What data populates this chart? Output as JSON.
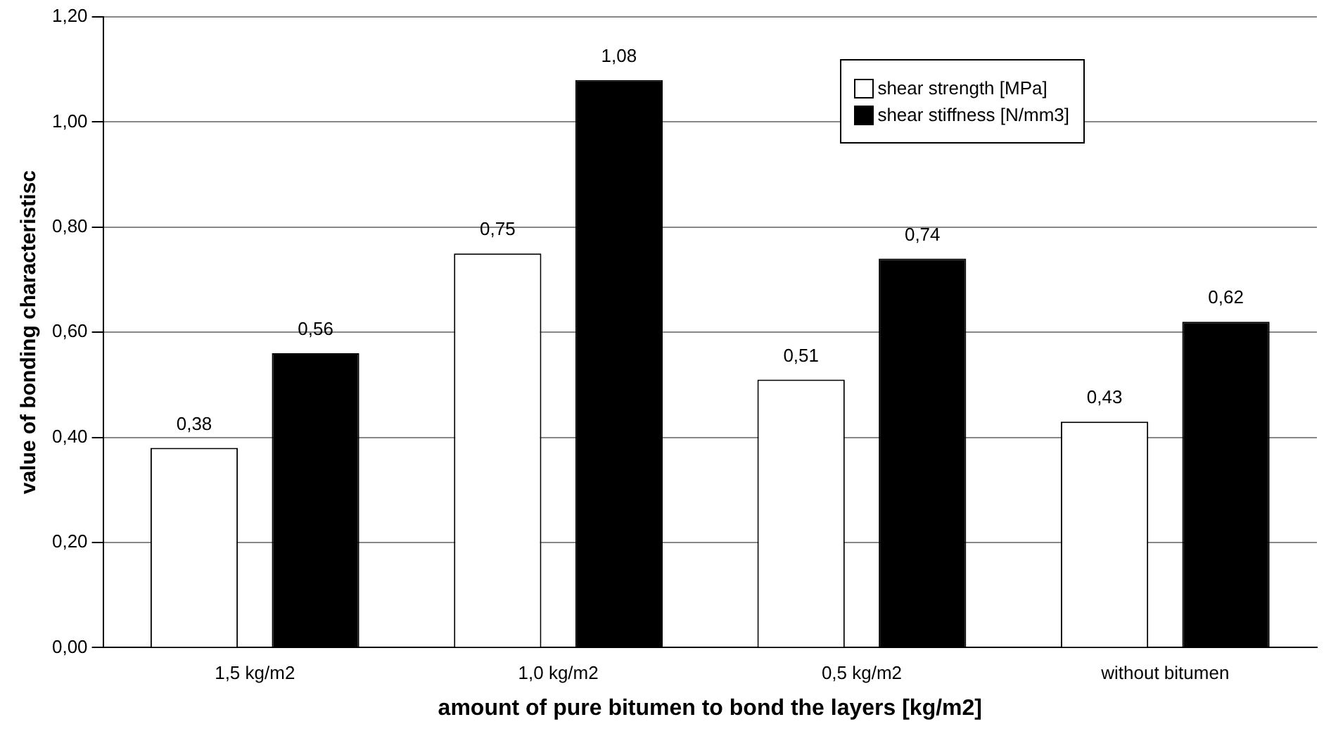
{
  "chart_data": {
    "type": "bar",
    "xlabel": "amount of pure bitumen to bond the layers [kg/m2]",
    "ylabel": "value of bonding characteristisc",
    "categories": [
      "1,5 kg/m2",
      "1,0 kg/m2",
      "0,5 kg/m2",
      "without bitumen"
    ],
    "series": [
      {
        "name": "shear strength [MPa]",
        "color": "#ffffff",
        "values": [
          0.38,
          0.75,
          0.51,
          0.43
        ],
        "value_labels": [
          "0,38",
          "0,75",
          "0,51",
          "0,43"
        ]
      },
      {
        "name": "shear stiffness [N/mm3]",
        "color": "#000000",
        "values": [
          0.56,
          1.08,
          0.74,
          0.62
        ],
        "value_labels": [
          "0,56",
          "1,08",
          "0,74",
          "0,62"
        ]
      }
    ],
    "ylim": [
      0,
      1.2
    ],
    "yticks": [
      {
        "value": 0,
        "label": "0,00"
      },
      {
        "value": 0.2,
        "label": "0,20"
      },
      {
        "value": 0.4,
        "label": "0,40"
      },
      {
        "value": 0.6,
        "label": "0,60"
      },
      {
        "value": 0.8,
        "label": "0,80"
      },
      {
        "value": 1,
        "label": "1,00"
      },
      {
        "value": 1.2,
        "label": "1,20"
      }
    ],
    "grid": "y",
    "legend": "top right"
  }
}
